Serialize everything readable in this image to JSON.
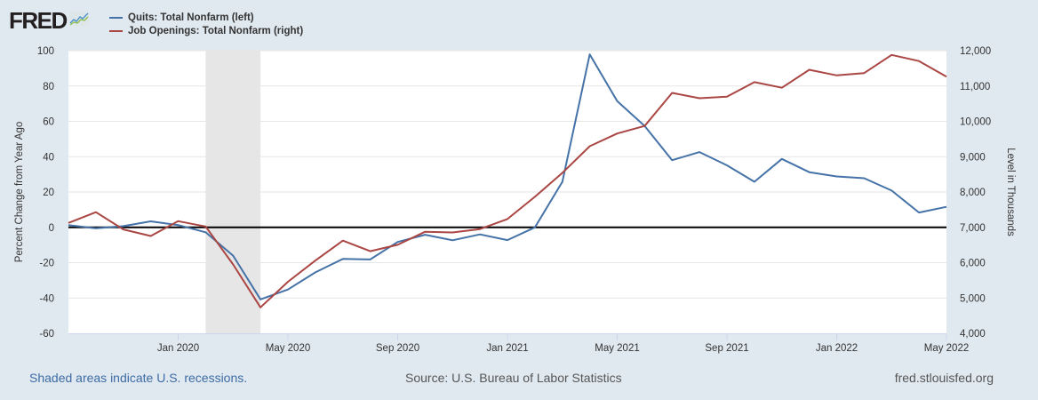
{
  "header": {
    "logo_text": "FRED",
    "logo_icon": "fred-line-graph-icon"
  },
  "footer": {
    "recession_note": "Shaded areas indicate U.S. recessions.",
    "source": "Source: U.S. Bureau of Labor Statistics",
    "site": "fred.stlouisfed.org"
  },
  "chart_data": {
    "type": "line",
    "title": "",
    "x": [
      "2019-09",
      "2019-10",
      "2019-11",
      "2019-12",
      "2020-01",
      "2020-02",
      "2020-03",
      "2020-04",
      "2020-05",
      "2020-06",
      "2020-07",
      "2020-08",
      "2020-09",
      "2020-10",
      "2020-11",
      "2020-12",
      "2021-01",
      "2021-02",
      "2021-03",
      "2021-04",
      "2021-05",
      "2021-06",
      "2021-07",
      "2021-08",
      "2021-09",
      "2021-10",
      "2021-11",
      "2021-12",
      "2022-01",
      "2022-02",
      "2022-03",
      "2022-04",
      "2022-05"
    ],
    "x_tick_labels": [
      "Jan 2020",
      "May 2020",
      "Sep 2020",
      "Jan 2021",
      "May 2021",
      "Sep 2021",
      "Jan 2022",
      "May 2022"
    ],
    "x_tick_positions": [
      "2020-01",
      "2020-05",
      "2020-09",
      "2021-01",
      "2021-05",
      "2021-09",
      "2022-01",
      "2022-05"
    ],
    "series": [
      {
        "name": "Quits: Total Nonfarm (left)",
        "axis": "left",
        "color": "#4572a7",
        "values": [
          1.3,
          -0.6,
          0.7,
          3.4,
          1.3,
          -2.8,
          -16,
          -40.8,
          -35.2,
          -25.5,
          -17.9,
          -18.2,
          -8.3,
          -4.2,
          -7.3,
          -4.0,
          -7.2,
          0.0,
          25.8,
          97.9,
          71.4,
          57.4,
          38.0,
          42.6,
          35.1,
          25.8,
          38.7,
          31.2,
          28.8,
          27.8,
          20.8,
          8.4,
          11.6
        ]
      },
      {
        "name": "Job Openings: Total Nonfarm (right)",
        "axis": "right",
        "color": "#aa4643",
        "values": [
          7125,
          7430,
          6940,
          6755,
          7175,
          7025,
          5950,
          4735,
          5460,
          6060,
          6625,
          6325,
          6505,
          6875,
          6855,
          6950,
          7235,
          7865,
          8540,
          9295,
          9655,
          9870,
          10805,
          10655,
          10700,
          11110,
          10950,
          11460,
          11300,
          11365,
          11880,
          11705,
          11265
        ]
      }
    ],
    "left_axis": {
      "label": "Percent Change from Year Ago",
      "ylim": [
        -60,
        100
      ],
      "ticks": [
        "100",
        "80",
        "60",
        "40",
        "20",
        "0",
        "-20",
        "-40",
        "-60"
      ],
      "tick_values": [
        100,
        80,
        60,
        40,
        20,
        0,
        -20,
        -40,
        -60
      ]
    },
    "right_axis": {
      "label": "Level in Thousands",
      "ylim": [
        4000,
        12000
      ],
      "ticks": [
        "12,000",
        "11,000",
        "10,000",
        "9,000",
        "8,000",
        "7,000",
        "6,000",
        "5,000",
        "4,000"
      ],
      "tick_values": [
        12000,
        11000,
        10000,
        9000,
        8000,
        7000,
        6000,
        5000,
        4000
      ]
    },
    "zero_line": 0,
    "recession_shading": [
      [
        "2020-02",
        "2020-04"
      ]
    ],
    "grid": true,
    "legend_position": "top-left"
  }
}
